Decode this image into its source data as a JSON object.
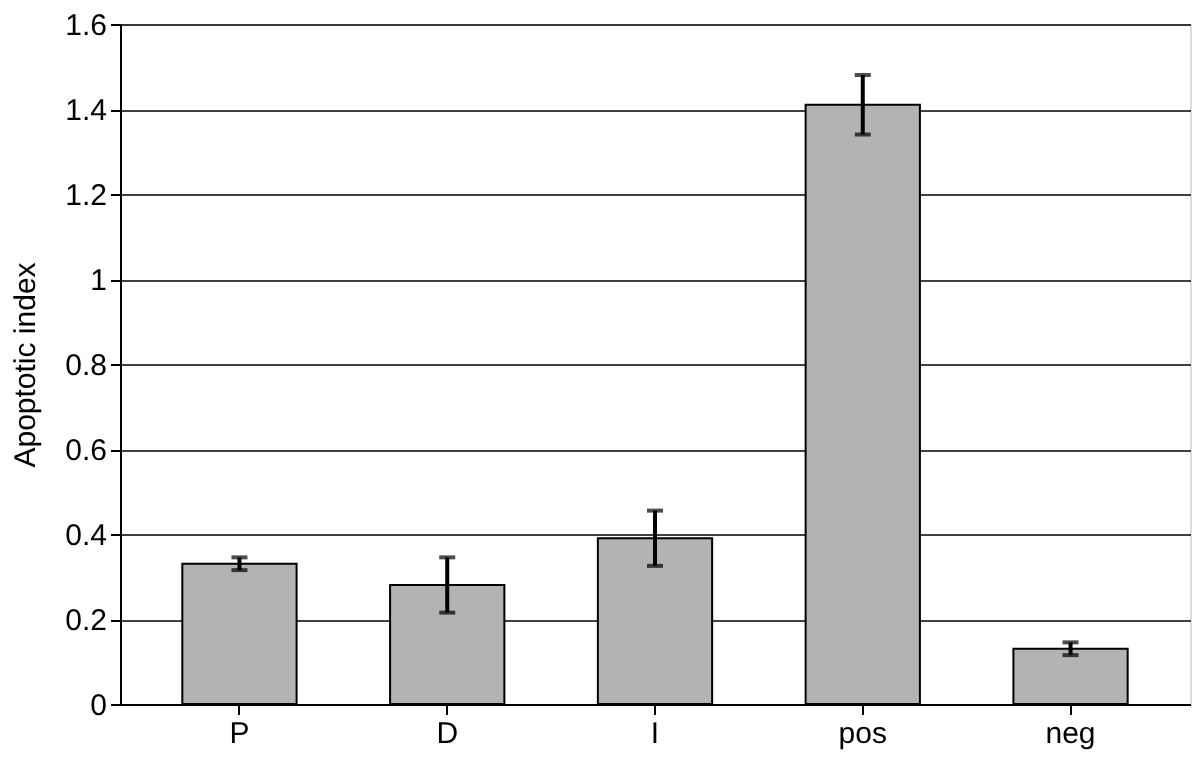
{
  "chart_data": {
    "type": "bar",
    "ylabel": "Apoptotic index",
    "categories": [
      "P",
      "D",
      "I",
      "pos",
      "neg"
    ],
    "values": [
      0.33,
      0.28,
      0.39,
      1.41,
      0.13
    ],
    "errors": [
      0.015,
      0.065,
      0.065,
      0.07,
      0.015
    ],
    "color": "#b3b3b3",
    "ylim": [
      0,
      1.6
    ],
    "yticks": [
      0,
      0.2,
      0.4,
      0.6,
      0.8,
      1,
      1.2,
      1.4,
      1.6
    ],
    "grid": "y"
  }
}
